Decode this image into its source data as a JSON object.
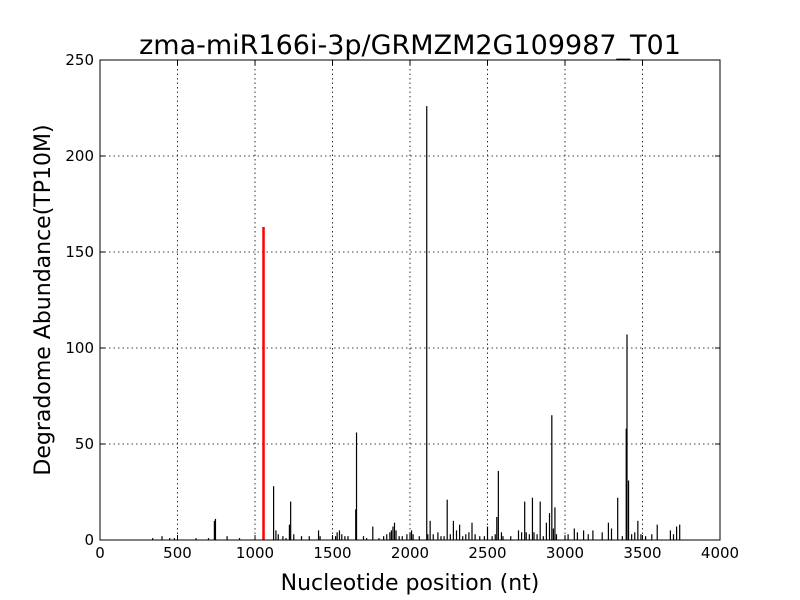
{
  "chart_data": {
    "type": "bar",
    "title": "zma-miR166i-3p/GRMZM2G109987_T01",
    "xlabel": "Nucleotide position (nt)",
    "ylabel": "Degradome Abundance(TP10M)",
    "xlim": [
      0,
      4000
    ],
    "ylim": [
      0,
      250
    ],
    "xticks": [
      "0",
      "500",
      "1000",
      "1500",
      "2000",
      "2500",
      "3000",
      "3500",
      "4000"
    ],
    "yticks": [
      "0",
      "50",
      "100",
      "150",
      "200",
      "250"
    ],
    "grid": true,
    "colors": {
      "default": "#000000",
      "highlight": "#ff0000"
    },
    "highlight": {
      "x": 1055,
      "y": 163
    },
    "series": [
      {
        "values": [
          [
            340,
            1
          ],
          [
            400,
            2
          ],
          [
            450,
            1
          ],
          [
            480,
            1
          ],
          [
            620,
            1
          ],
          [
            700,
            1
          ],
          [
            738,
            10
          ],
          [
            745,
            11
          ],
          [
            820,
            2
          ],
          [
            900,
            1
          ],
          [
            1120,
            28
          ],
          [
            1135,
            5
          ],
          [
            1150,
            3
          ],
          [
            1180,
            2
          ],
          [
            1200,
            1
          ],
          [
            1222,
            8
          ],
          [
            1230,
            20
          ],
          [
            1250,
            3
          ],
          [
            1300,
            2
          ],
          [
            1350,
            2
          ],
          [
            1410,
            5
          ],
          [
            1420,
            2
          ],
          [
            1500,
            2
          ],
          [
            1520,
            2
          ],
          [
            1530,
            4
          ],
          [
            1545,
            5
          ],
          [
            1560,
            3
          ],
          [
            1580,
            2
          ],
          [
            1600,
            2
          ],
          [
            1650,
            16
          ],
          [
            1655,
            56
          ],
          [
            1700,
            2
          ],
          [
            1720,
            1
          ],
          [
            1760,
            7
          ],
          [
            1800,
            1
          ],
          [
            1830,
            2
          ],
          [
            1850,
            3
          ],
          [
            1870,
            4
          ],
          [
            1880,
            5
          ],
          [
            1890,
            7
          ],
          [
            1900,
            9
          ],
          [
            1910,
            5
          ],
          [
            1930,
            2
          ],
          [
            1950,
            2
          ],
          [
            1980,
            3
          ],
          [
            2000,
            4
          ],
          [
            2010,
            5
          ],
          [
            2020,
            3
          ],
          [
            2060,
            2
          ],
          [
            2108,
            226
          ],
          [
            2115,
            3
          ],
          [
            2130,
            10
          ],
          [
            2150,
            3
          ],
          [
            2180,
            4
          ],
          [
            2200,
            2
          ],
          [
            2220,
            2
          ],
          [
            2240,
            21
          ],
          [
            2260,
            3
          ],
          [
            2280,
            10
          ],
          [
            2300,
            5
          ],
          [
            2320,
            8
          ],
          [
            2340,
            2
          ],
          [
            2360,
            3
          ],
          [
            2380,
            4
          ],
          [
            2400,
            9
          ],
          [
            2420,
            3
          ],
          [
            2450,
            2
          ],
          [
            2480,
            2
          ],
          [
            2500,
            7
          ],
          [
            2530,
            2
          ],
          [
            2550,
            3
          ],
          [
            2560,
            12
          ],
          [
            2570,
            36
          ],
          [
            2590,
            4
          ],
          [
            2600,
            2
          ],
          [
            2650,
            2
          ],
          [
            2700,
            5
          ],
          [
            2720,
            4
          ],
          [
            2740,
            20
          ],
          [
            2750,
            4
          ],
          [
            2770,
            3
          ],
          [
            2790,
            22
          ],
          [
            2800,
            4
          ],
          [
            2820,
            3
          ],
          [
            2840,
            20
          ],
          [
            2860,
            2
          ],
          [
            2880,
            9
          ],
          [
            2900,
            14
          ],
          [
            2915,
            65
          ],
          [
            2925,
            6
          ],
          [
            2935,
            17
          ],
          [
            2945,
            3
          ],
          [
            3000,
            2
          ],
          [
            3020,
            3
          ],
          [
            3060,
            6
          ],
          [
            3080,
            4
          ],
          [
            3120,
            5
          ],
          [
            3150,
            3
          ],
          [
            3180,
            5
          ],
          [
            3240,
            4
          ],
          [
            3280,
            9
          ],
          [
            3300,
            6
          ],
          [
            3340,
            22
          ],
          [
            3370,
            2
          ],
          [
            3395,
            58
          ],
          [
            3400,
            107
          ],
          [
            3410,
            31
          ],
          [
            3430,
            3
          ],
          [
            3450,
            4
          ],
          [
            3470,
            10
          ],
          [
            3490,
            3
          ],
          [
            3520,
            2
          ],
          [
            3560,
            3
          ],
          [
            3595,
            8
          ],
          [
            3680,
            5
          ],
          [
            3700,
            3
          ],
          [
            3720,
            7
          ],
          [
            3740,
            8
          ]
        ]
      }
    ]
  }
}
